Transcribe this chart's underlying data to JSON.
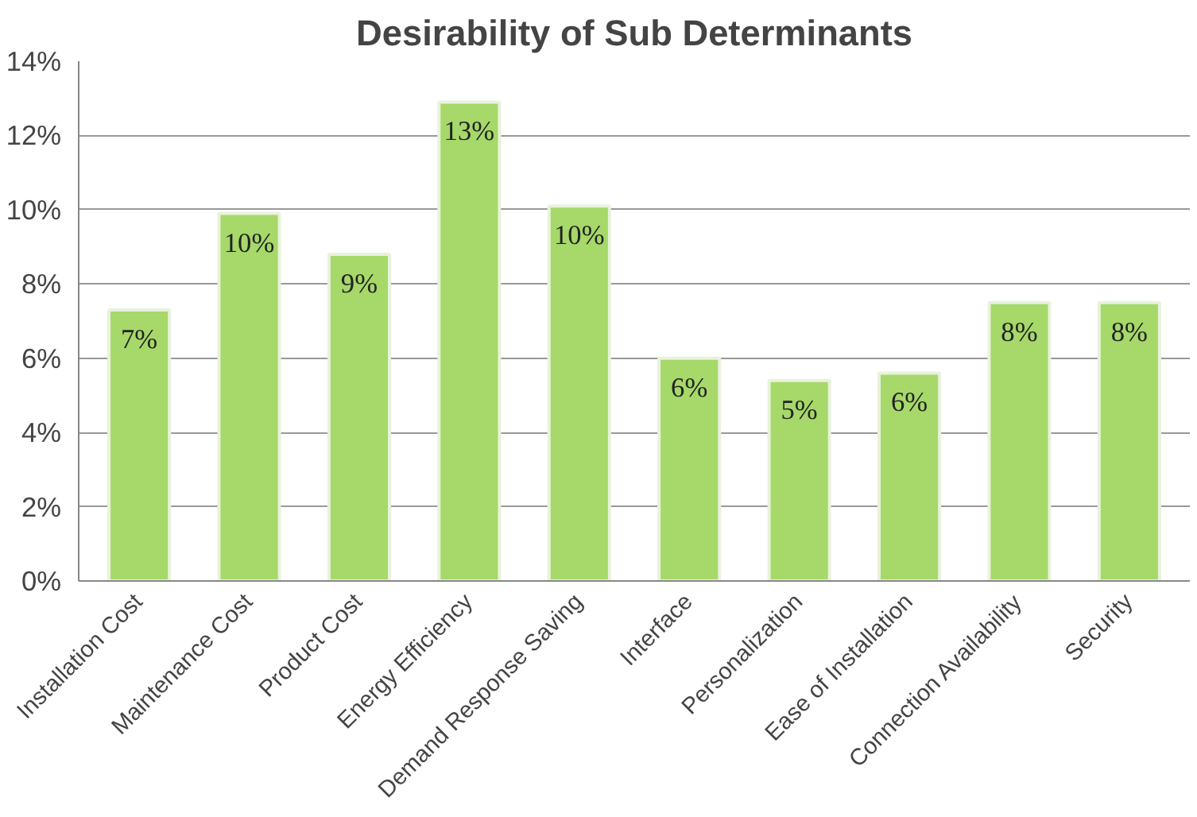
{
  "chart_data": {
    "type": "bar",
    "title": "Desirability of Sub Determinants",
    "categories": [
      "Installation Cost",
      "Maintenance Cost",
      "Product Cost",
      "Energy Efficiency",
      "Demand Response Saving",
      "Interface",
      "Personalization",
      "Ease of Installation",
      "Connection Availability",
      "Security"
    ],
    "values": [
      7.3,
      9.9,
      8.8,
      12.9,
      10.1,
      6.0,
      5.4,
      5.6,
      7.5,
      7.5
    ],
    "value_labels": [
      "7%",
      "10%",
      "9%",
      "13%",
      "10%",
      "6%",
      "5%",
      "6%",
      "8%",
      "8%"
    ],
    "color": "#a6d86a",
    "ylim": [
      0,
      14
    ],
    "yticks": [
      {
        "value": 0,
        "label": "0%"
      },
      {
        "value": 2,
        "label": "2%"
      },
      {
        "value": 4,
        "label": "4%"
      },
      {
        "value": 6,
        "label": "6%"
      },
      {
        "value": 8,
        "label": "8%"
      },
      {
        "value": 10,
        "label": "10%"
      },
      {
        "value": 12,
        "label": "12%"
      },
      {
        "value": 14,
        "label": "14%"
      }
    ],
    "grid": "y"
  }
}
